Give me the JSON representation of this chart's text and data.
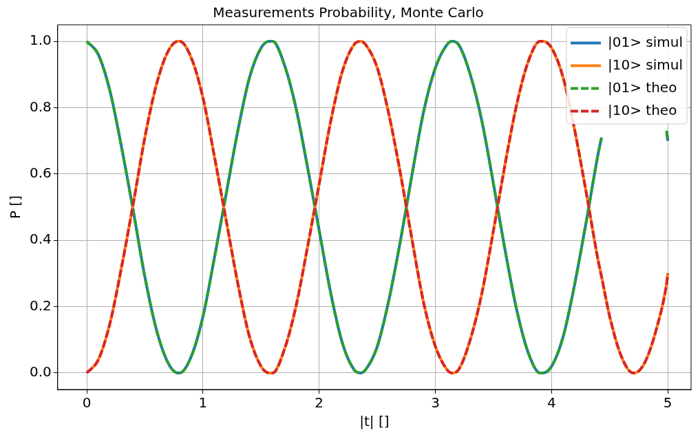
{
  "chart_data": {
    "type": "line",
    "title": "Measurements Probability, Monte Carlo",
    "xlabel": "|t| []",
    "ylabel": "P []",
    "x": [
      0,
      0.1,
      0.2,
      0.3,
      0.4,
      0.5,
      0.6,
      0.7,
      0.785,
      0.8,
      0.9,
      1.0,
      1.1,
      1.2,
      1.3,
      1.4,
      1.5,
      1.571,
      1.6,
      1.7,
      1.8,
      1.9,
      2.0,
      2.1,
      2.2,
      2.3,
      2.356,
      2.4,
      2.5,
      2.6,
      2.7,
      2.8,
      2.9,
      3.0,
      3.1,
      3.142,
      3.2,
      3.3,
      3.4,
      3.5,
      3.6,
      3.7,
      3.8,
      3.9,
      3.927,
      4.0,
      4.1,
      4.2,
      4.3,
      4.4,
      4.43,
      4.5,
      4.6,
      4.7,
      4.712,
      4.8,
      4.9,
      4.99,
      5.0
    ],
    "series": [
      {
        "name": "|01> simul",
        "color": "#1f77b4",
        "line_style": "solid",
        "values": [
          1.0,
          0.96,
          0.85,
          0.68,
          0.49,
          0.29,
          0.13,
          0.03,
          0,
          0.0,
          0.05,
          0.17,
          0.35,
          0.54,
          0.73,
          0.89,
          0.98,
          1,
          1.0,
          0.93,
          0.8,
          0.62,
          0.43,
          0.24,
          0.09,
          0.01,
          0,
          0.01,
          0.08,
          0.22,
          0.4,
          0.6,
          0.79,
          0.92,
          0.99,
          1,
          0.99,
          0.9,
          0.76,
          0.57,
          0.37,
          0.19,
          0.06,
          0.0,
          0,
          0.02,
          0.11,
          0.27,
          0.46,
          0.66,
          0.71,
          null,
          null,
          null,
          null,
          null,
          null,
          0.73,
          0.7
        ]
      },
      {
        "name": "|10> simul",
        "color": "#ff7f0e",
        "line_style": "solid",
        "values": [
          0.0,
          0.04,
          0.15,
          0.32,
          0.51,
          0.71,
          0.87,
          0.97,
          1,
          1.0,
          0.95,
          0.83,
          0.65,
          0.46,
          0.27,
          0.11,
          0.02,
          0,
          0.0,
          0.07,
          0.2,
          0.38,
          0.57,
          0.76,
          0.91,
          0.99,
          1,
          0.99,
          0.92,
          0.78,
          0.6,
          0.4,
          0.21,
          0.08,
          0.01,
          0,
          0.01,
          0.1,
          0.24,
          0.43,
          0.63,
          0.81,
          0.94,
          1.0,
          1,
          0.98,
          0.89,
          0.73,
          0.54,
          0.34,
          0.29,
          0.17,
          0.05,
          0.0,
          0,
          0.03,
          0.13,
          0.27,
          0.3
        ]
      },
      {
        "name": "|01> theo",
        "color": "#2ca02c",
        "line_style": "dashed",
        "values": [
          1.0,
          0.96,
          0.85,
          0.68,
          0.49,
          0.29,
          0.13,
          0.03,
          0,
          0.0,
          0.05,
          0.17,
          0.35,
          0.54,
          0.73,
          0.89,
          0.98,
          1,
          1.0,
          0.93,
          0.8,
          0.62,
          0.43,
          0.24,
          0.09,
          0.01,
          0,
          0.01,
          0.08,
          0.22,
          0.4,
          0.6,
          0.79,
          0.92,
          0.99,
          1,
          0.99,
          0.9,
          0.76,
          0.57,
          0.37,
          0.19,
          0.06,
          0.0,
          0,
          0.02,
          0.11,
          0.27,
          0.46,
          0.66,
          0.71,
          null,
          null,
          null,
          null,
          null,
          null,
          0.73,
          0.7
        ]
      },
      {
        "name": "|10> theo",
        "color": "#d62728",
        "line_style": "dashed",
        "values": [
          0.0,
          0.04,
          0.15,
          0.32,
          0.51,
          0.71,
          0.87,
          0.97,
          1,
          1.0,
          0.95,
          0.83,
          0.65,
          0.46,
          0.27,
          0.11,
          0.02,
          0,
          0.0,
          0.07,
          0.2,
          0.38,
          0.57,
          0.76,
          0.91,
          0.99,
          1,
          0.99,
          0.92,
          0.78,
          0.6,
          0.4,
          0.21,
          0.08,
          0.01,
          0,
          0.01,
          0.1,
          0.24,
          0.43,
          0.63,
          0.81,
          0.94,
          1.0,
          1,
          0.98,
          0.89,
          0.73,
          0.54,
          0.34,
          0.29,
          0.17,
          0.05,
          0.0,
          0,
          0.03,
          0.13,
          0.27,
          0.3
        ]
      }
    ],
    "xlim": [
      -0.25,
      5.2
    ],
    "xticks": [
      0,
      1,
      2,
      3,
      4,
      5
    ],
    "ylim": [
      -0.05,
      1.05
    ],
    "yticks": [
      {
        "value": 0,
        "label": "0.0"
      },
      {
        "value": 0.2,
        "label": "0.2"
      },
      {
        "value": 0.4,
        "label": "0.4"
      },
      {
        "value": 0.6,
        "label": "0.6"
      },
      {
        "value": 0.8,
        "label": "0.8"
      },
      {
        "value": 1,
        "label": "1.0"
      }
    ],
    "grid": true,
    "legend": "top right"
  }
}
